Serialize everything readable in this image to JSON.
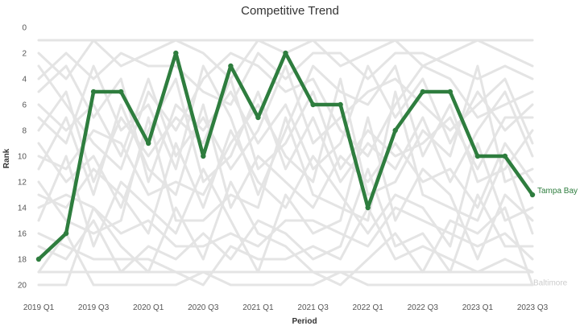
{
  "chart_data": {
    "type": "line",
    "title": "Competitive Trend",
    "xlabel": "Period",
    "ylabel": "Rank",
    "ylim": [
      0,
      20
    ],
    "y_reversed": true,
    "yticks": [
      "0",
      "2",
      "4",
      "6",
      "8",
      "10",
      "12",
      "14",
      "16",
      "18",
      "20"
    ],
    "categories": [
      "2019 Q1",
      "2019 Q2",
      "2019 Q3",
      "2019 Q4",
      "2020 Q1",
      "2020 Q2",
      "2020 Q3",
      "2020 Q4",
      "2021 Q1",
      "2021 Q2",
      "2021 Q3",
      "2021 Q4",
      "2022 Q1",
      "2022 Q2",
      "2022 Q3",
      "2022 Q4",
      "2023 Q1",
      "2023 Q2",
      "2023 Q3"
    ],
    "tick_labels": [
      "2019 Q1",
      "2019 Q3",
      "2020 Q1",
      "2020 Q3",
      "2021 Q1",
      "2021 Q3",
      "2022 Q1",
      "2022 Q3",
      "2023 Q1",
      "2023 Q3"
    ],
    "grid": false,
    "colors": {
      "highlight": "#2e7d3e",
      "background": "#e4e4e4",
      "muted_label": "#cccccc"
    },
    "series": [
      {
        "name": "Tampa Bay",
        "highlight": true,
        "values": [
          18,
          16,
          5,
          5,
          9,
          2,
          10,
          3,
          7,
          2,
          6,
          6,
          14,
          8,
          5,
          5,
          10,
          10,
          13
        ]
      },
      {
        "name": "Baltimore",
        "highlight": false,
        "values": [
          20,
          20,
          14,
          17,
          19,
          14,
          18,
          12,
          16,
          17,
          19,
          20,
          18,
          16,
          19,
          15,
          16,
          14,
          20
        ]
      },
      {
        "values": [
          1,
          1,
          1,
          1,
          1,
          1,
          1,
          1,
          1,
          1,
          1,
          1,
          1,
          1,
          1,
          1,
          1,
          1,
          1
        ]
      },
      {
        "values": [
          19,
          19,
          19,
          19,
          19,
          19,
          19,
          19,
          19,
          19,
          19,
          19,
          19,
          19,
          19,
          19,
          19,
          19,
          19
        ]
      },
      {
        "values": [
          2,
          4,
          1,
          3,
          2,
          1,
          2,
          4,
          1,
          2,
          1,
          3,
          2,
          1,
          3,
          2,
          1,
          2,
          3
        ]
      },
      {
        "values": [
          3,
          6,
          9,
          11,
          5,
          8,
          4,
          2,
          3,
          5,
          4,
          8,
          10,
          6,
          3,
          4,
          7,
          6,
          5
        ]
      },
      {
        "values": [
          5,
          3,
          7,
          4,
          12,
          6,
          8,
          5,
          9,
          6,
          11,
          9,
          3,
          7,
          4,
          9,
          5,
          8,
          6
        ]
      },
      {
        "values": [
          7,
          9,
          3,
          8,
          6,
          11,
          3,
          7,
          13,
          8,
          3,
          5,
          6,
          3,
          10,
          6,
          12,
          11,
          8
        ]
      },
      {
        "values": [
          9,
          12,
          10,
          14,
          8,
          4,
          12,
          10,
          5,
          11,
          7,
          12,
          9,
          11,
          7,
          12,
          8,
          5,
          10
        ]
      },
      {
        "values": [
          11,
          7,
          13,
          6,
          11,
          13,
          6,
          14,
          10,
          12,
          14,
          10,
          12,
          9,
          12,
          11,
          14,
          9,
          12
        ]
      },
      {
        "values": [
          13,
          14,
          11,
          13,
          16,
          9,
          14,
          8,
          12,
          14,
          10,
          13,
          16,
          13,
          14,
          17,
          9,
          15,
          14
        ]
      },
      {
        "values": [
          15,
          10,
          17,
          12,
          14,
          16,
          11,
          15,
          19,
          13,
          16,
          15,
          7,
          15,
          11,
          13,
          18,
          13,
          15
        ]
      },
      {
        "values": [
          17,
          18,
          15,
          19,
          17,
          18,
          16,
          18,
          15,
          16,
          18,
          17,
          11,
          17,
          16,
          19,
          13,
          17,
          17
        ]
      },
      {
        "values": [
          4,
          2,
          4,
          2,
          3,
          3,
          5,
          6,
          2,
          4,
          2,
          2,
          4,
          2,
          2,
          3,
          4,
          3,
          4
        ]
      },
      {
        "values": [
          6,
          8,
          6,
          10,
          4,
          10,
          7,
          11,
          8,
          3,
          9,
          7,
          5,
          4,
          6,
          8,
          6,
          4,
          9
        ]
      },
      {
        "values": [
          8,
          5,
          12,
          7,
          10,
          7,
          9,
          4,
          11,
          9,
          5,
          11,
          8,
          10,
          9,
          7,
          11,
          7,
          7
        ]
      },
      {
        "values": [
          10,
          11,
          8,
          9,
          13,
          12,
          13,
          9,
          6,
          10,
          12,
          4,
          13,
          12,
          8,
          10,
          3,
          12,
          11
        ]
      },
      {
        "values": [
          12,
          15,
          16,
          15,
          7,
          15,
          15,
          13,
          14,
          7,
          13,
          14,
          15,
          5,
          13,
          14,
          15,
          10,
          16
        ]
      },
      {
        "values": [
          14,
          13,
          14,
          16,
          15,
          17,
          17,
          16,
          17,
          15,
          15,
          16,
          17,
          14,
          15,
          16,
          17,
          16,
          18
        ]
      },
      {
        "values": [
          16,
          17,
          18,
          18,
          18,
          19,
          20,
          17,
          18,
          18,
          17,
          18,
          14,
          18,
          17,
          18,
          19,
          18,
          19
        ]
      },
      {
        "values": [
          19,
          16,
          20,
          20,
          20,
          20,
          19,
          20,
          20,
          20,
          20,
          19,
          20,
          20,
          20,
          20,
          20,
          20,
          20
        ]
      }
    ]
  }
}
